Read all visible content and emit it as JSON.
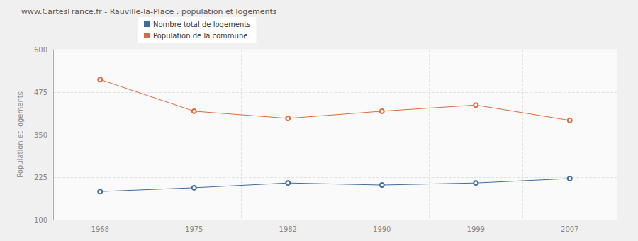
{
  "chart_data": {
    "type": "line",
    "title": "www.CartesFrance.fr - Rauville-la-Place : population et logements",
    "y_label": "Population et logements",
    "categories": [
      "1968",
      "1975",
      "1982",
      "1990",
      "1999",
      "2007"
    ],
    "series": [
      {
        "name": "Nombre total de logements",
        "color": "#3d6d9e",
        "marker": "circle",
        "line_style": "solid",
        "values": [
          183,
          194,
          208,
          202,
          208,
          221
        ]
      },
      {
        "name": "Population de la commune",
        "color": "#dd6a3c",
        "marker": "circle",
        "line_style": "solid",
        "values": [
          512,
          419,
          398,
          419,
          437,
          392
        ]
      }
    ],
    "ylim": [
      100,
      600
    ],
    "yticks": [
      100,
      225,
      350,
      475,
      600
    ],
    "grid": true,
    "legend": "top"
  }
}
